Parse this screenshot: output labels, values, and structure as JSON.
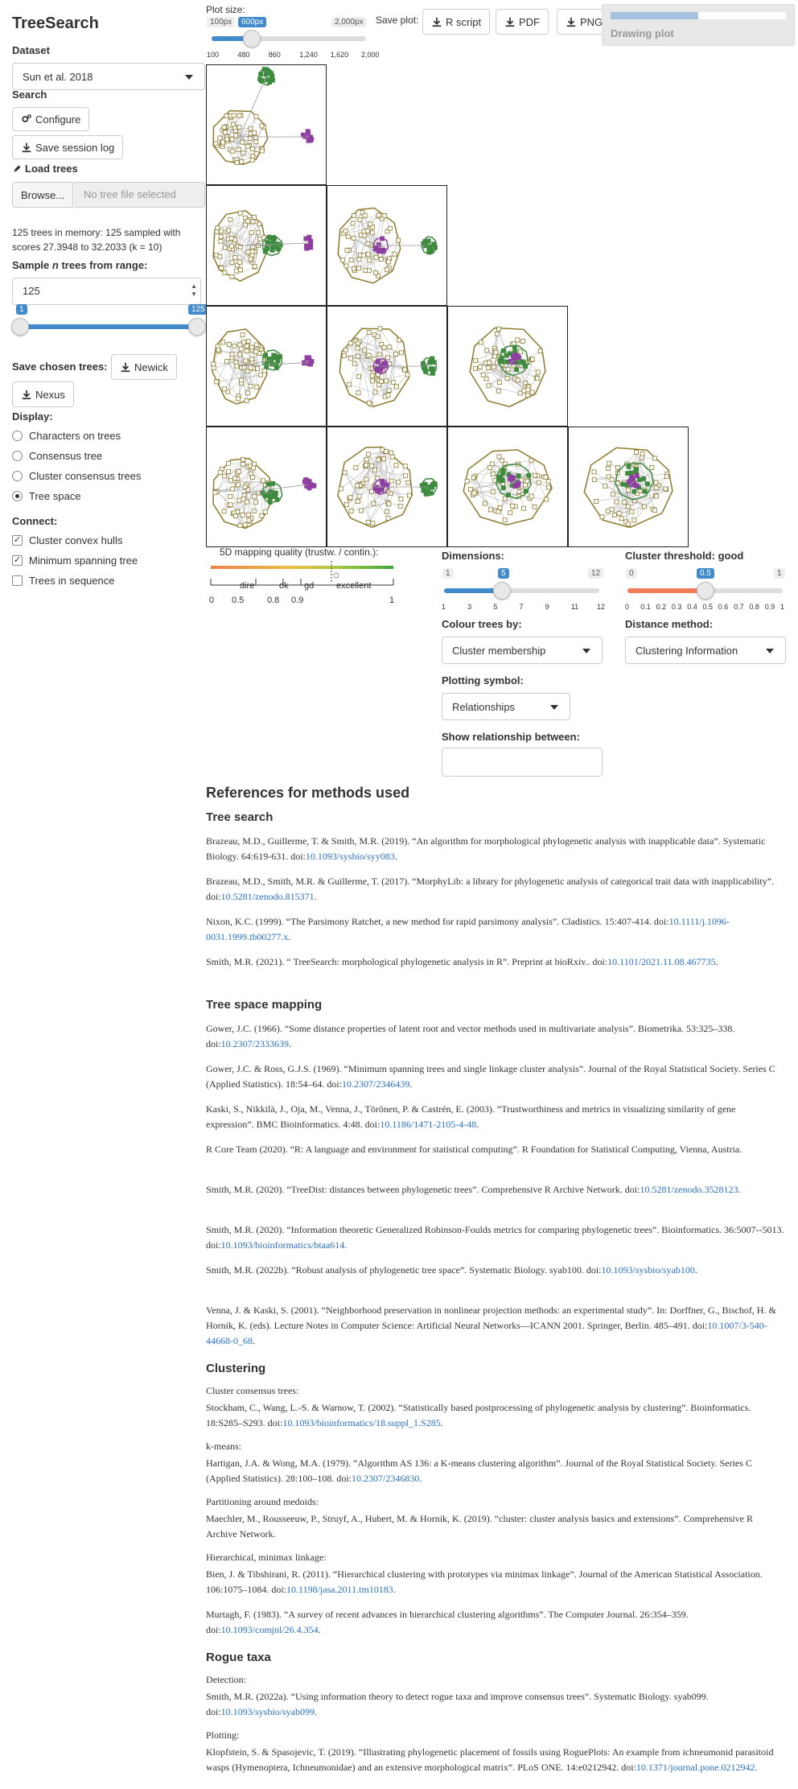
{
  "app": {
    "title": "TreeSearch"
  },
  "sidebar": {
    "dataset_label": "Dataset",
    "dataset_value": "Sun et al. 2018",
    "search_label": "Search",
    "configure_button": "Configure",
    "save_log_button": "Save session log",
    "load_trees_label": "Load trees",
    "browse_button": "Browse...",
    "file_placeholder": "No tree file selected",
    "trees_status": "125 trees in memory: 125 sampled with scores 27.3948 to 32.2033 (k = 10)",
    "sample_label_pre": "Sample",
    "sample_label_n": "n",
    "sample_label_post": "trees from range:",
    "sample_value": "125",
    "range_min": "1",
    "range_max": "125",
    "save_chosen_label": "Save chosen trees:",
    "newick_button": "Newick",
    "nexus_button": "Nexus",
    "display_label": "Display:",
    "display_options": [
      {
        "label": "Characters on trees",
        "selected": false
      },
      {
        "label": "Consensus tree",
        "selected": false
      },
      {
        "label": "Cluster consensus trees",
        "selected": false
      },
      {
        "label": "Tree space",
        "selected": true
      }
    ],
    "connect_label": "Connect:",
    "connect_options": [
      {
        "label": "Cluster convex hulls",
        "checked": true
      },
      {
        "label": "Minimum spanning tree",
        "checked": true
      },
      {
        "label": "Trees in sequence",
        "checked": false
      }
    ]
  },
  "topbar": {
    "plot_size_label": "Plot size:",
    "plot_size_min": "100px",
    "plot_size_value": "600px",
    "plot_size_max": "2,000px",
    "plot_size_ticks": [
      "100",
      "480",
      "860",
      "1,240",
      "1,620",
      "2,000"
    ],
    "plot_size_fraction": 0.263,
    "save_plot_label": "Save plot:",
    "r_script_button": "R script",
    "pdf_button": "PDF",
    "png_button": "PNG",
    "progress_label": "Drawing plot",
    "progress_fraction": 0.5
  },
  "quality": {
    "title": "5D mapping quality (trustw. / contin.):",
    "categories": [
      "dire",
      "ok",
      "gd",
      "excellent"
    ],
    "ticks": [
      "0",
      "0.5",
      "0.8",
      "0.9",
      "1"
    ]
  },
  "controls": {
    "dimensions_label": "Dimensions:",
    "dimensions_min": "1",
    "dimensions_value": "5",
    "dimensions_max": "12",
    "dimensions_ticks": [
      "1",
      "3",
      "5",
      "7",
      "9",
      "11",
      "12"
    ],
    "threshold_label": "Cluster threshold: good",
    "threshold_min": "0",
    "threshold_value": "0.5",
    "threshold_max": "1",
    "threshold_ticks": [
      "0",
      "0.1",
      "0.2",
      "0.3",
      "0.4",
      "0.5",
      "0.6",
      "0.7",
      "0.8",
      "0.9",
      "1"
    ],
    "colour_label": "Colour trees by:",
    "colour_value": "Cluster membership",
    "distance_label": "Distance method:",
    "distance_value": "Clustering Information",
    "symbol_label": "Plotting symbol:",
    "symbol_value": "Relationships",
    "relationship_label": "Show relationship between:",
    "relationship_value": ""
  },
  "colors": {
    "accent": "#428bca",
    "cluster_olive": "#8c7a2e",
    "cluster_green": "#3e8a3e",
    "cluster_purple": "#8e3fa0",
    "link": "#2a6fbf"
  },
  "references": {
    "title": "References for methods used",
    "tree_search_heading": "Tree search",
    "tree_search": [
      {
        "text": "Brazeau, M.D., Guillerme, T. & Smith, M.R. (2019). “An algorithm for morphological phylogenetic analysis with inapplicable data”. Systematic Biology. 64:619-631. doi:",
        "doi": "10.1093/sysbio/syy083",
        "end": "."
      },
      {
        "text": "Brazeau, M.D., Smith, M.R. & Guillerme, T. (2017). “MorphyLib: a library for phylogenetic analysis of categorical trait data with inapplicability”. doi:",
        "doi": "10.5281/zenodo.815371",
        "end": "."
      },
      {
        "text": "Nixon, K.C. (1999). “The Parsimony Ratchet, a new method for rapid parsimony analysis”. Cladistics. 15:407-414. doi:",
        "doi": "10.1111/j.1096-0031.1999.tb00277.x",
        "end": "."
      },
      {
        "text": "Smith, M.R. (2021). “ TreeSearch: morphological phylogenetic analysis in R”. Preprint at bioRxiv.. doi:",
        "doi": "10.1101/2021.11.08.467735",
        "end": "."
      }
    ],
    "tree_space_heading": "Tree space mapping",
    "tree_space": [
      {
        "text": "Gower, J.C. (1966). “Some distance properties of latent root and vector methods used in multivariate analysis”. Biometrika. 53:325–338. doi:",
        "doi": "10.2307/2333639",
        "end": "."
      },
      {
        "text": "Gower, J.C. & Ross, G.J.S. (1969). “Minimum spanning trees and single linkage cluster analysis”. Journal of the Royal Statistical Society. Series C (Applied Statistics). 18:54–64. doi:",
        "doi": "10.2307/2346439",
        "end": "."
      },
      {
        "text": "Kaski, S., Nikkilä, J., Oja, M., Venna, J., Törönen, P. & Castrén, E. (2003). “Trustworthiness and metrics in visualizing similarity of gene expression”. BMC Bioinformatics. 4:48. doi:",
        "doi": "10.1186/1471-2105-4-48",
        "end": "."
      },
      {
        "text": "R Core Team (2020). “R: A language and environment for statistical computing”. R Foundation for Statistical Computing, Vienna, Austria.",
        "doi": "",
        "end": ""
      },
      {
        "text": "Smith, M.R. (2020). “TreeDist: distances between phylogenetic trees”. Comprehensive R Archive Network. doi:",
        "doi": "10.5281/zenodo.3528123",
        "end": "."
      },
      {
        "text": "Smith, M.R. (2020). “Information theoretic Generalized Robinson-Foulds metrics for comparing phylogenetic trees”. Bioinformatics. 36:5007--5013. doi:",
        "doi": "10.1093/bioinformatics/btaa614",
        "end": "."
      },
      {
        "text": "Smith, M.R. (2022b). “Robust analysis of phylogenetic tree space”. Systematic Biology. syab100. doi:",
        "doi": "10.1093/sysbio/syab100",
        "end": "."
      },
      {
        "text": "Venna, J. & Kaski, S. (2001). “Neighborhood preservation in nonlinear projection methods: an experimental study”. In: Dorffner, G., Bischof, H. & Hornik, K. (eds). Lecture Notes in Computer Science: Artificial Neural Networks—ICANN 2001. Springer, Berlin. 485–491. doi:",
        "doi": "10.1007/3-540-44668-0_68",
        "end": "."
      }
    ],
    "clustering_heading": "Clustering",
    "clustering_groups": [
      {
        "label": "Cluster consensus trees:",
        "refs": [
          {
            "text": "Stockham, C., Wang, L.-S. & Warnow, T. (2002). “Statistically based postprocessing of phylogenetic analysis by clustering”. Bioinformatics. 18:S285–S293. doi:",
            "doi": "10.1093/bioinformatics/18.suppl_1.S285",
            "end": "."
          }
        ]
      },
      {
        "label": "k-means:",
        "refs": [
          {
            "text": "Hartigan, J.A. & Wong, M.A. (1979). “Algorithm AS 136: a K-means clustering algorithm”. Journal of the Royal Statistical Society. Series C (Applied Statistics). 28:100–108. doi:",
            "doi": "10.2307/2346830",
            "end": "."
          }
        ]
      },
      {
        "label": "Partitioning around medoids:",
        "refs": [
          {
            "text": "Maechler, M., Rousseeuw, P., Struyf, A., Hubert, M. & Hornik, K. (2019). “cluster: cluster analysis basics and extensions”. Comprehensive R Archive Network.",
            "doi": "",
            "end": ""
          }
        ]
      },
      {
        "label": "Hierarchical, minimax linkage:",
        "refs": [
          {
            "text": "Bien, J. & Tibshirani, R. (2011). “Hierarchical clustering with prototypes via minimax linkage”. Journal of the American Statistical Association. 106:1075–1084. doi:",
            "doi": "10.1198/jasa.2011.tm10183",
            "end": "."
          },
          {
            "text": "Murtagh, F. (1983). “A survey of recent advances in hierarchical clustering algorithms”. The Computer Journal. 26:354–359. doi:",
            "doi": "10.1093/comjnl/26.4.354",
            "end": "."
          }
        ]
      }
    ],
    "rogue_heading": "Rogue taxa",
    "rogue_groups": [
      {
        "label": "Detection:",
        "refs": [
          {
            "text": "Smith, M.R. (2022a). “Using information theory to detect rogue taxa and improve consensus trees”. Systematic Biology. syab099. doi:",
            "doi": "10.1093/sysbio/syab099",
            "end": "."
          }
        ]
      },
      {
        "label": "Plotting:",
        "refs": [
          {
            "text": "Klopfstein, S. & Spasojevic, T. (2019). “Illustrating phylogenetic placement of fossils using RoguePlots: An example from ichneumonid parasitoid wasps (Hymenoptera, Ichneumonidae) and an extensive morphological matrix”. PLoS ONE. 14:e0212942. doi:",
            "doi": "10.1371/journal.pone.0212942",
            "end": "."
          }
        ]
      }
    ]
  }
}
